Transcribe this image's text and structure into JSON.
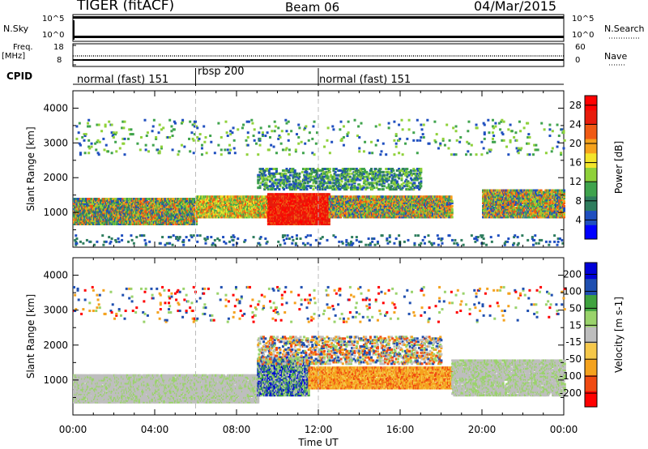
{
  "header": {
    "radar": "TIGER (fitACF)",
    "beam": "Beam 06",
    "date": "04/Mar/2015"
  },
  "strips": {
    "nsky_label": "N.Sky",
    "nsky_ticks": [
      "10^5",
      "10^0"
    ],
    "nsearch_label": "N.Search",
    "nsearch_ticks": [
      "10^5",
      "10^0"
    ],
    "freq_label": "Freq.",
    "freq_unit": "[MHz]",
    "freq_ticks": [
      "18",
      "8"
    ],
    "nave_label": "Nave",
    "nave_ticks": [
      "60",
      "0"
    ],
    "cpid_label": "CPID"
  },
  "cpid_segments": [
    {
      "label": "normal (fast) 151",
      "start_h": 0,
      "end_h": 6
    },
    {
      "label": "rbsp 200",
      "start_h": 6,
      "end_h": 12
    },
    {
      "label": "normal (fast) 151",
      "start_h": 12,
      "end_h": 24
    }
  ],
  "chart_data": [
    {
      "type": "heatmap",
      "title": "",
      "xlabel": "",
      "ylabel": "Slant Range [km]",
      "yticks": [
        "1000",
        "2000",
        "3000",
        "4000"
      ],
      "ylim": [
        0,
        4500
      ],
      "xlim_hours": [
        0,
        24
      ],
      "colorbar": {
        "label": "Power [dB]",
        "ticks": [
          "28",
          "24",
          "20",
          "16",
          "12",
          "8",
          "4"
        ],
        "range": [
          0,
          30
        ],
        "colors": [
          "#0000ff",
          "#1f4fbf",
          "#2e7d5e",
          "#3fa34d",
          "#8fd13a",
          "#f3e52a",
          "#f6a21c",
          "#f05a14",
          "#e81c0c",
          "#ff0000"
        ]
      }
    },
    {
      "type": "heatmap",
      "title": "",
      "xlabel": "Time UT",
      "ylabel": "Slant Range [km]",
      "yticks": [
        "1000",
        "2000",
        "3000",
        "4000"
      ],
      "ylim": [
        0,
        4500
      ],
      "xlim_hours": [
        0,
        24
      ],
      "xticks": [
        "00:00",
        "04:00",
        "08:00",
        "12:00",
        "16:00",
        "20:00",
        "00:00"
      ],
      "colorbar": {
        "label": "Velocity [m s-1]",
        "ticks": [
          "200",
          "100",
          "50",
          "15",
          "-15",
          "-50",
          "-100",
          "-200"
        ],
        "range": [
          -250,
          250
        ],
        "colors": [
          "#ff0000",
          "#f04a12",
          "#f4a21e",
          "#f6c84a",
          "#bebebe",
          "#9ad36b",
          "#3fa33f",
          "#1f4fb0",
          "#0000d8"
        ]
      }
    }
  ]
}
